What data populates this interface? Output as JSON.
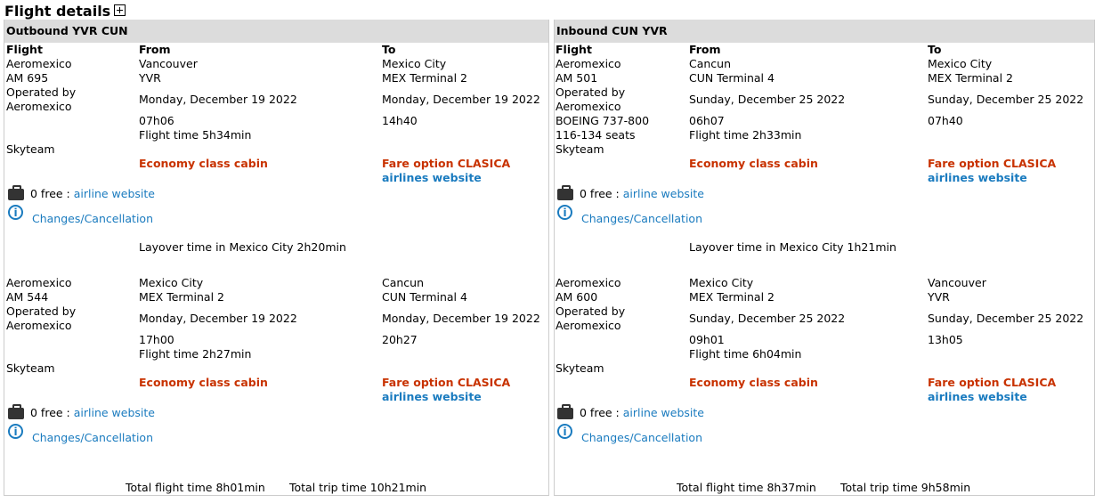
{
  "title": "Flight details",
  "labels": {
    "flight": "Flight",
    "from": "From",
    "to": "To"
  },
  "panels": [
    {
      "header": "Outbound YVR CUN",
      "segments": [
        {
          "airline": "Aeromexico",
          "number": "AM 695",
          "operated": "Operated by",
          "operator": "Aeromexico",
          "aircraft": "",
          "seats": "",
          "alliance": "Skyteam",
          "from_city": "Vancouver",
          "from_term": "YVR",
          "from_date": "Monday, December 19 2022",
          "from_time": "07h06",
          "flight_time": "Flight time 5h34min",
          "to_city": "Mexico City",
          "to_term": "MEX Terminal 2",
          "to_date": "Monday, December 19 2022",
          "to_time": "14h40",
          "cabin": "Economy class cabin",
          "fare": "Fare option CLASICA",
          "airlines_site": "airlines website",
          "bag_free": "0 free : ",
          "bag_link": "airline website",
          "changes": "Changes/Cancellation",
          "layover": "Layover time in Mexico City 2h20min"
        },
        {
          "airline": "Aeromexico",
          "number": "AM 544",
          "operated": "Operated by",
          "operator": "Aeromexico",
          "aircraft": "",
          "seats": "",
          "alliance": "Skyteam",
          "from_city": "Mexico City",
          "from_term": "MEX Terminal 2",
          "from_date": "Monday, December 19 2022",
          "from_time": "17h00",
          "flight_time": "Flight time 2h27min",
          "to_city": "Cancun",
          "to_term": "CUN Terminal 4",
          "to_date": "Monday, December 19 2022",
          "to_time": "20h27",
          "cabin": "Economy class cabin",
          "fare": "Fare option CLASICA",
          "airlines_site": "airlines website",
          "bag_free": "0 free : ",
          "bag_link": "airline website",
          "changes": "Changes/Cancellation"
        }
      ],
      "total_flight": "Total flight time 8h01min",
      "total_trip": "Total trip time 10h21min"
    },
    {
      "header": "Inbound CUN YVR",
      "segments": [
        {
          "airline": "Aeromexico",
          "number": "AM 501",
          "operated": "Operated by",
          "operator": "Aeromexico",
          "aircraft": "BOEING 737-800",
          "seats": "116-134 seats",
          "alliance": "Skyteam",
          "from_city": "Cancun",
          "from_term": "CUN Terminal 4",
          "from_date": "Sunday, December 25 2022",
          "from_time": "06h07",
          "flight_time": "Flight time 2h33min",
          "to_city": "Mexico City",
          "to_term": "MEX Terminal 2",
          "to_date": "Sunday, December 25 2022",
          "to_time": "07h40",
          "cabin": "Economy class cabin",
          "fare": "Fare option CLASICA",
          "airlines_site": "airlines website",
          "bag_free": "0 free : ",
          "bag_link": "airline website",
          "changes": "Changes/Cancellation",
          "layover": "Layover time in Mexico City 1h21min"
        },
        {
          "airline": "Aeromexico",
          "number": "AM 600",
          "operated": "Operated by",
          "operator": "Aeromexico",
          "aircraft": "",
          "seats": "",
          "alliance": "Skyteam",
          "from_city": "Mexico City",
          "from_term": "MEX Terminal 2",
          "from_date": "Sunday, December 25 2022",
          "from_time": "09h01",
          "flight_time": "Flight time 6h04min",
          "to_city": "Vancouver",
          "to_term": "YVR",
          "to_date": "Sunday, December 25 2022",
          "to_time": "13h05",
          "cabin": "Economy class cabin",
          "fare": "Fare option CLASICA",
          "airlines_site": "airlines website",
          "bag_free": "0 free : ",
          "bag_link": "airline website",
          "changes": "Changes/Cancellation"
        }
      ],
      "total_flight": "Total flight time 8h37min",
      "total_trip": "Total trip time 9h58min"
    }
  ]
}
